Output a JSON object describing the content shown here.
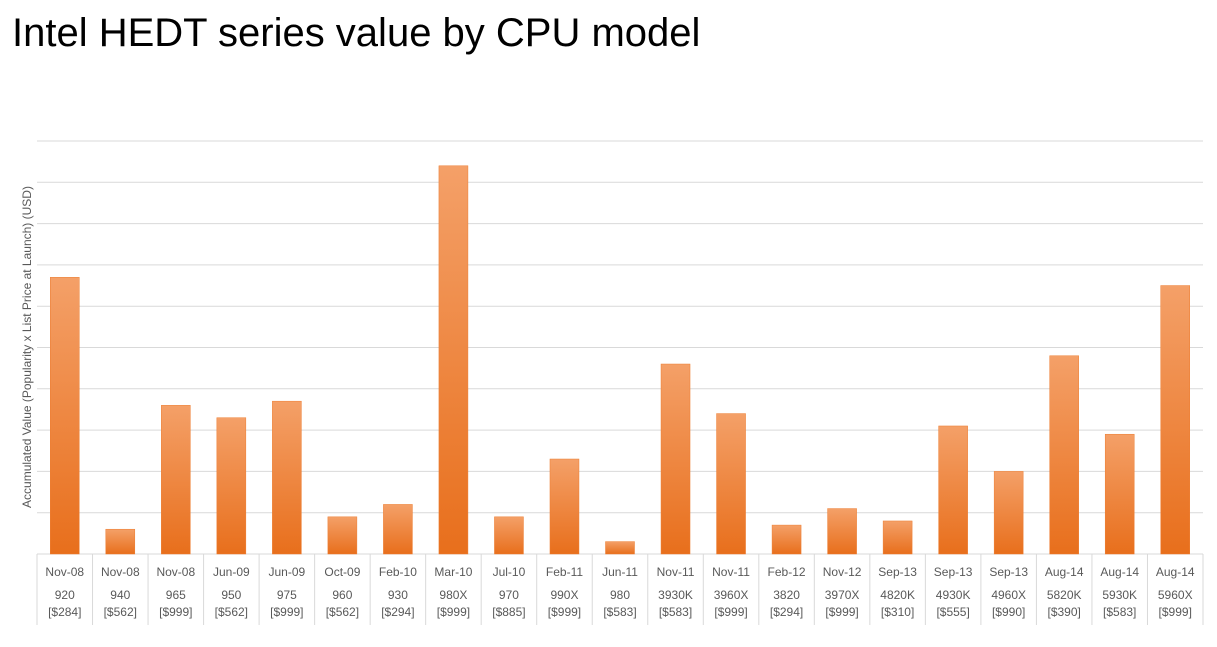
{
  "chart_data": {
    "type": "bar",
    "title": "Intel HEDT series value by CPU model",
    "y_label": "Accumulated Value (Popularity x List Price at Launch) (USD)",
    "categories": [
      "Nov-08",
      "Nov-08",
      "Nov-08",
      "Jun-09",
      "Jun-09",
      "Oct-09",
      "Feb-10",
      "Mar-10",
      "Jul-10",
      "Feb-11",
      "Jun-11",
      "Nov-11",
      "Nov-11",
      "Feb-12",
      "Nov-12",
      "Sep-13",
      "Sep-13",
      "Sep-13",
      "Aug-14",
      "Aug-14",
      "Aug-14"
    ],
    "models": [
      "920",
      "940",
      "965",
      "950",
      "975",
      "960",
      "930",
      "980X",
      "970",
      "990X",
      "980",
      "3930K",
      "3960X",
      "3820",
      "3970X",
      "4820K",
      "4930K",
      "4960X",
      "5820K",
      "5930K",
      "5960X"
    ],
    "prices": [
      "[$284]",
      "[$562]",
      "[$999]",
      "[$562]",
      "[$999]",
      "[$562]",
      "[$294]",
      "[$999]",
      "[$885]",
      "[$999]",
      "[$583]",
      "[$583]",
      "[$999]",
      "[$294]",
      "[$999]",
      "[$310]",
      "[$555]",
      "[$990]",
      "[$390]",
      "[$583]",
      "[$999]"
    ],
    "values": [
      6.7,
      0.6,
      3.6,
      3.3,
      3.7,
      0.9,
      1.2,
      9.4,
      0.9,
      2.3,
      0.3,
      4.6,
      3.4,
      0.7,
      1.1,
      0.8,
      3.1,
      2.0,
      4.8,
      2.9,
      6.5
    ],
    "color": "#ed7d31",
    "ylim": [
      0,
      10
    ],
    "gridlines": [
      0,
      1,
      2,
      3,
      4,
      5,
      6,
      7,
      8,
      9,
      10
    ],
    "grid": true
  }
}
